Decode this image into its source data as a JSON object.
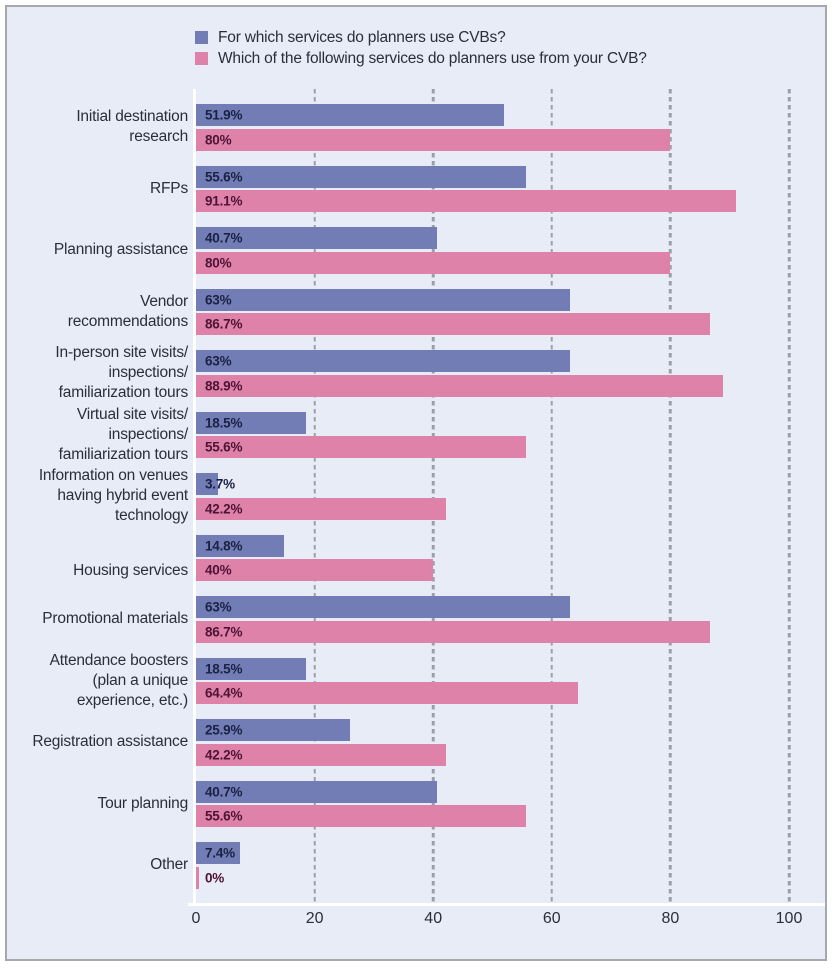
{
  "chart_data": {
    "type": "bar",
    "orientation": "horizontal",
    "title": "",
    "legend_position": "top",
    "grid": "vertical-dashed",
    "xlim": [
      0,
      100
    ],
    "x_ticks": [
      0,
      20,
      40,
      60,
      80,
      100
    ],
    "categories": [
      "Initial destination\nresearch",
      "RFPs",
      "Planning assistance",
      "Vendor\nrecommendations",
      "In-person site visits/\ninspections/\nfamiliarization tours",
      "Virtual site visits/\ninspections/\nfamiliarization tours",
      "Information on venues\nhaving hybrid event\ntechnology",
      "Housing services",
      "Promotional materials",
      "Attendance boosters\n(plan a unique\nexperience, etc.)",
      "Registration assistance",
      "Tour planning",
      "Other"
    ],
    "series": [
      {
        "key": "planners-use-cvbs",
        "name": "For which services do planners use CVBs?",
        "color": "#717db4",
        "value_label_color": "#1b2145",
        "values": [
          51.9,
          55.6,
          40.7,
          63,
          63,
          18.5,
          3.7,
          14.8,
          63,
          18.5,
          25.9,
          40.7,
          7.4
        ],
        "value_labels": [
          "51.9%",
          "55.6%",
          "40.7%",
          "63%",
          "63%",
          "18.5%",
          "3.7%",
          "14.8%",
          "63%",
          "18.5%",
          "25.9%",
          "40.7%",
          "7.4%"
        ]
      },
      {
        "key": "services-from-your-cvb",
        "name": "Which of the following services do planners use from your CVB?",
        "color": "#de82a9",
        "value_label_color": "#4d1335",
        "values": [
          80,
          91.1,
          80,
          86.7,
          88.9,
          55.6,
          42.2,
          40,
          86.7,
          64.4,
          42.2,
          55.6,
          0
        ],
        "value_labels": [
          "80%",
          "91.1%",
          "80%",
          "86.7%",
          "88.9%",
          "55.6%",
          "42.2%",
          "40%",
          "86.7%",
          "64.4%",
          "42.2%",
          "55.6%",
          "0%"
        ]
      }
    ]
  },
  "colors": {
    "panel_background": "#e8ecf6",
    "panel_border": "#a6a8ab",
    "gridline": "#9aa0a8",
    "axis_line": "#ffffff",
    "text": "#2b2e38"
  }
}
